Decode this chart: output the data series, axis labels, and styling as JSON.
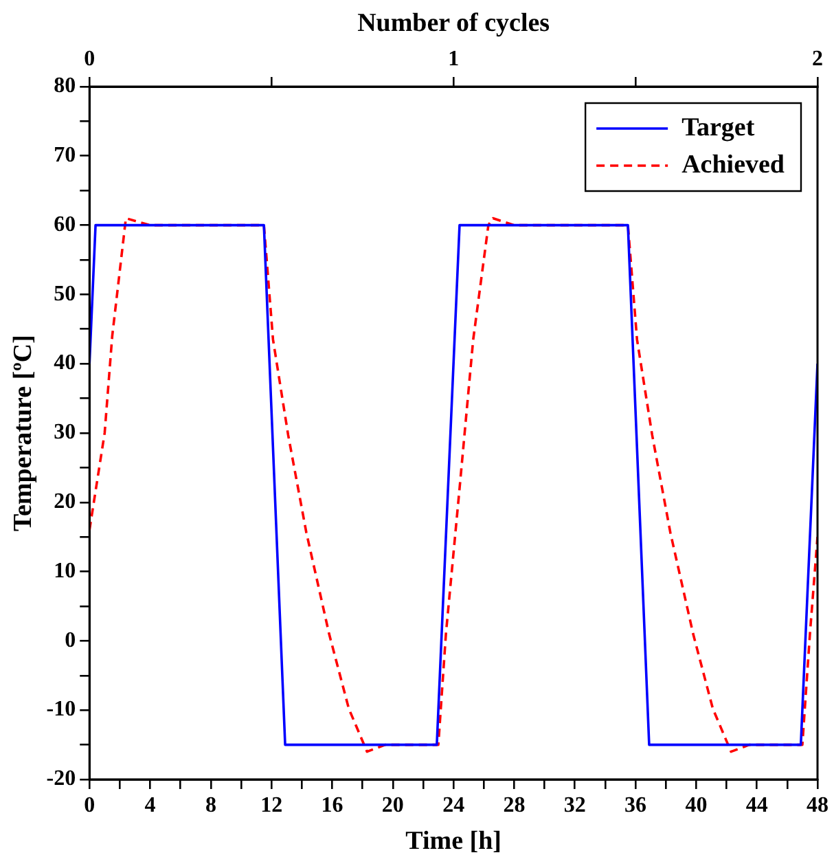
{
  "chart_data": {
    "type": "line",
    "xlabel": "Time [h]",
    "ylabel": "Temperature [ºC]",
    "x2label": "Number of cycles",
    "xlim": [
      0,
      48
    ],
    "xticks": [
      0,
      {
        "value": 2,
        "label": null
      },
      4,
      {
        "value": 6,
        "label": null
      },
      8,
      {
        "value": 10,
        "label": null
      },
      12,
      {
        "value": 14,
        "label": null
      },
      16,
      {
        "value": 18,
        "label": null
      },
      20,
      {
        "value": 22,
        "label": null
      },
      24,
      {
        "value": 26,
        "label": null
      },
      28,
      {
        "value": 30,
        "label": null
      },
      32,
      {
        "value": 34,
        "label": null
      },
      36,
      {
        "value": 38,
        "label": null
      },
      40,
      {
        "value": 42,
        "label": null
      },
      44,
      {
        "value": 46,
        "label": null
      },
      48
    ],
    "x2lim": [
      0,
      2
    ],
    "x2ticks": [
      0,
      {
        "value": 0.5,
        "label": null
      },
      1,
      {
        "value": 1.5,
        "label": null
      },
      2
    ],
    "ylim": [
      -20,
      80
    ],
    "yticks": [
      -20,
      {
        "value": -15,
        "label": null
      },
      -10,
      {
        "value": -5,
        "label": null
      },
      0,
      {
        "value": 5,
        "label": null
      },
      10,
      {
        "value": 15,
        "label": null
      },
      20,
      {
        "value": 25,
        "label": null
      },
      30,
      {
        "value": 35,
        "label": null
      },
      40,
      {
        "value": 45,
        "label": null
      },
      50,
      {
        "value": 55,
        "label": null
      },
      60,
      {
        "value": 65,
        "label": null
      },
      70,
      {
        "value": 75,
        "label": null
      },
      80
    ],
    "grid": false,
    "legend": "top right",
    "marker": "none",
    "series": [
      {
        "name": "Target",
        "color": "#0000ff",
        "line_style": "solid",
        "x": [
          0,
          0.4,
          11.5,
          12.9,
          22.9,
          24.4,
          35.5,
          36.9,
          46.9,
          48
        ],
        "values": [
          40,
          60,
          60,
          -15,
          -15,
          60,
          60,
          -15,
          -15,
          40
        ]
      },
      {
        "name": "Achieved",
        "color": "#ff0000",
        "line_style": "dashed",
        "x": [
          0,
          1,
          1.5,
          2.4,
          4,
          11.5,
          12.1,
          13.1,
          14.3,
          15.8,
          17.1,
          18.3,
          19.5,
          23,
          23.5,
          24.4,
          25.3,
          26.3,
          26.6,
          28,
          35.5,
          36.1,
          37.1,
          38.3,
          39.8,
          41.1,
          42.3,
          43.5,
          47,
          47.5,
          48
        ],
        "values": [
          16,
          30,
          44,
          61,
          60,
          60,
          43.5,
          29.7,
          15.6,
          1,
          -9.8,
          -16,
          -15,
          -15,
          1,
          22,
          43.5,
          60,
          61,
          60,
          60,
          43.5,
          29.7,
          15.6,
          1,
          -9.8,
          -16,
          -15,
          -15,
          1,
          15
        ]
      }
    ]
  }
}
